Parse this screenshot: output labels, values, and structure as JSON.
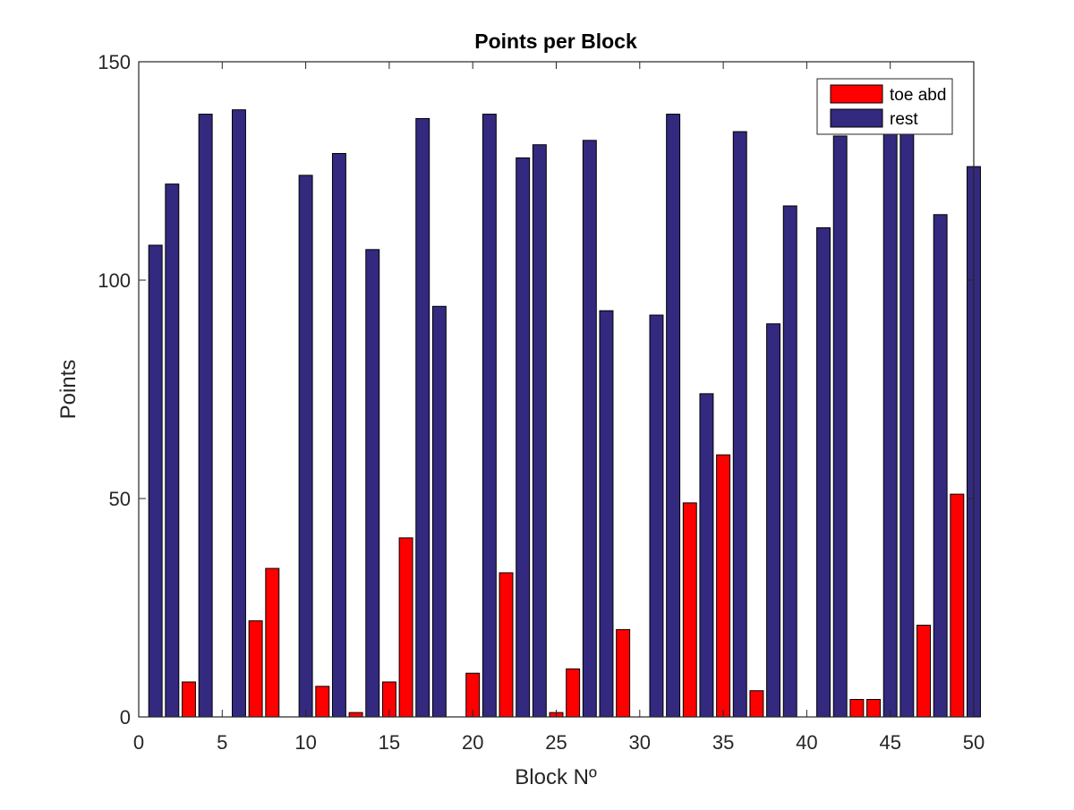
{
  "chart_data": {
    "type": "bar",
    "title": "Points per Block",
    "xlabel": "Block Nº",
    "ylabel": "Points",
    "xlim": [
      0,
      50
    ],
    "ylim": [
      0,
      150
    ],
    "xticks": [
      0,
      5,
      10,
      15,
      20,
      25,
      30,
      35,
      40,
      45,
      50
    ],
    "yticks": [
      0,
      50,
      100,
      150
    ],
    "grid": false,
    "legend_position": "top-right",
    "series": [
      {
        "name": "toe abd",
        "color": "#ff0000",
        "points": [
          {
            "x": 3,
            "y": 8
          },
          {
            "x": 7,
            "y": 22
          },
          {
            "x": 8,
            "y": 34
          },
          {
            "x": 11,
            "y": 7
          },
          {
            "x": 13,
            "y": 1
          },
          {
            "x": 15,
            "y": 8
          },
          {
            "x": 16,
            "y": 41
          },
          {
            "x": 20,
            "y": 10
          },
          {
            "x": 22,
            "y": 33
          },
          {
            "x": 25,
            "y": 1
          },
          {
            "x": 26,
            "y": 11
          },
          {
            "x": 29,
            "y": 20
          },
          {
            "x": 33,
            "y": 49
          },
          {
            "x": 35,
            "y": 60
          },
          {
            "x": 37,
            "y": 6
          },
          {
            "x": 43,
            "y": 4
          },
          {
            "x": 44,
            "y": 4
          },
          {
            "x": 47,
            "y": 21
          },
          {
            "x": 49,
            "y": 51
          }
        ]
      },
      {
        "name": "rest",
        "color": "#33297f",
        "points": [
          {
            "x": 1,
            "y": 108
          },
          {
            "x": 2,
            "y": 122
          },
          {
            "x": 4,
            "y": 138
          },
          {
            "x": 6,
            "y": 139
          },
          {
            "x": 10,
            "y": 124
          },
          {
            "x": 12,
            "y": 129
          },
          {
            "x": 14,
            "y": 107
          },
          {
            "x": 17,
            "y": 137
          },
          {
            "x": 18,
            "y": 94
          },
          {
            "x": 21,
            "y": 138
          },
          {
            "x": 23,
            "y": 128
          },
          {
            "x": 24,
            "y": 131
          },
          {
            "x": 27,
            "y": 132
          },
          {
            "x": 28,
            "y": 93
          },
          {
            "x": 31,
            "y": 92
          },
          {
            "x": 32,
            "y": 138
          },
          {
            "x": 34,
            "y": 74
          },
          {
            "x": 36,
            "y": 134
          },
          {
            "x": 38,
            "y": 90
          },
          {
            "x": 39,
            "y": 117
          },
          {
            "x": 41,
            "y": 112
          },
          {
            "x": 42,
            "y": 133
          },
          {
            "x": 45,
            "y": 140
          },
          {
            "x": 46,
            "y": 140
          },
          {
            "x": 48,
            "y": 115
          },
          {
            "x": 50,
            "y": 126
          }
        ]
      }
    ]
  }
}
